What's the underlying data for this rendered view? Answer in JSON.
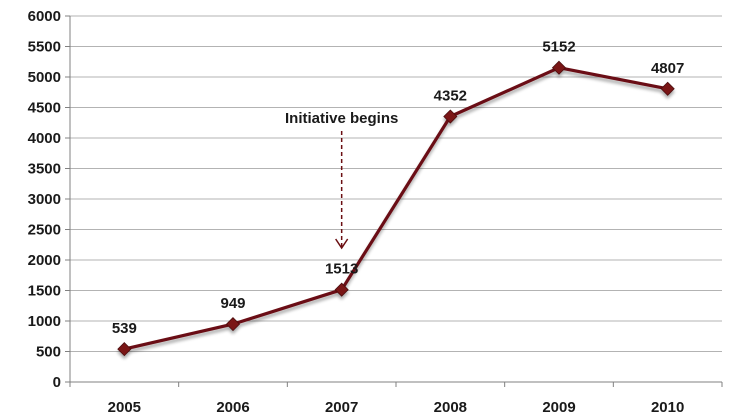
{
  "chart_data": {
    "type": "line",
    "title": "",
    "xlabel": "",
    "ylabel": "",
    "categories": [
      "2005",
      "2006",
      "2007",
      "2008",
      "2009",
      "2010"
    ],
    "values": [
      539,
      949,
      1513,
      4352,
      5152,
      4807
    ],
    "data_labels": [
      "539",
      "949",
      "1513",
      "4352",
      "5152",
      "4807"
    ],
    "ylim": [
      0,
      6000
    ],
    "y_ticks": [
      0,
      500,
      1000,
      1500,
      2000,
      2500,
      3000,
      3500,
      4000,
      4500,
      5000,
      5500,
      6000
    ],
    "y_tick_labels": [
      "0",
      "500",
      "1000",
      "1500",
      "2000",
      "2500",
      "3000",
      "3500",
      "4000",
      "4500",
      "5000",
      "5500",
      "6000"
    ],
    "grid": true,
    "legend": "none",
    "annotation": {
      "text": "Initiative begins",
      "category": "2007",
      "style": "dashed arrow pointing down"
    },
    "colors": {
      "line": "#6b0f12",
      "marker": "#7a1518",
      "grid": "#b3b3b3",
      "axis": "#808080"
    }
  }
}
